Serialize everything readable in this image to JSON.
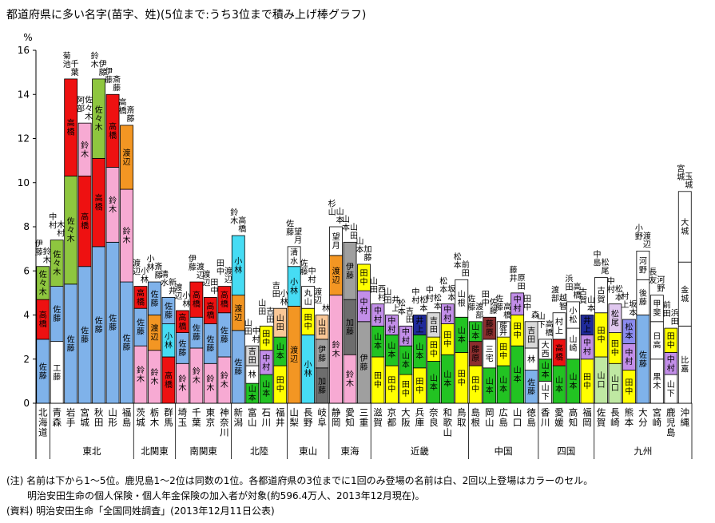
{
  "title": "都道府県に多い名字(苗字、姓)(5位まで:うち3位まで積み上げ棒グラフ)",
  "notes": [
    "(注) 名前は下から1～5位。鹿児島1～2位は同数の1位。各都道府県の3位までに1回のみ登場の名前は白、2回以上登場はカラーのセル。",
    "明治安田生命の個人保険・個人年金保険の加入者が対象(約596.4万人、2013年12月現在)。",
    "(資料) 明治安田生命「全国同姓調査」(2013年12月11日公表)"
  ],
  "chart_data": {
    "type": "bar",
    "stacked": true,
    "ylabel": "%",
    "ylim": [
      0,
      16
    ],
    "yticks": [
      "0",
      "2",
      "4",
      "6",
      "8",
      "10",
      "12",
      "14",
      "16"
    ],
    "colors": {
      "佐藤": "#7fb2ea",
      "鈴木": "#f7aad3",
      "高橋": "#ee1111",
      "佐々木": "#8ec63f",
      "渡辺": "#f39623",
      "伊藤": "#9f9f9f",
      "小林": "#46dcf4",
      "山田": "#f9c796",
      "田中": "#ffff00",
      "山本": "#22c322",
      "中村": "#c28ee8",
      "加藤": "#6d6d6d",
      "松本": "#8b8bee",
      "吉田": "#d9d9d9",
      "清水": "#ffffff",
      "山口": "#bfe8a2",
      "井上": "#1f2a9a",
      "松尾": "#e0c8ef",
      "藤原": "#8b2e2e",
      "高木": "#ffffff",
      "other": "#ffffff"
    },
    "text_colors": {
      "井上": "#ffffff",
      "藤原": "#ffffff",
      "加藤": "#ffffff",
      "高橋": "#ffffff"
    },
    "regions": [
      {
        "name": "東北",
        "from": 2,
        "to": 7
      },
      {
        "name": "北関東",
        "from": 8,
        "to": 10
      },
      {
        "name": "南関東",
        "from": 11,
        "to": 14
      },
      {
        "name": "北陸",
        "from": 15,
        "to": 18
      },
      {
        "name": "東山",
        "from": 19,
        "to": 21
      },
      {
        "name": "東海",
        "from": 22,
        "to": 24
      },
      {
        "name": "近畿",
        "from": 25,
        "to": 31
      },
      {
        "name": "中国",
        "from": 32,
        "to": 36
      },
      {
        "name": "四国",
        "from": 37,
        "to": 40
      },
      {
        "name": "九州",
        "from": 41,
        "to": 47
      }
    ],
    "prefectures": [
      {
        "name": "北海道",
        "stack": [
          {
            "n": "佐藤",
            "v": 2.9
          },
          {
            "n": "高橋",
            "v": 1.8
          },
          {
            "n": "佐々木",
            "v": 1.5
          }
        ],
        "top": [
          "鈴木",
          "伊藤"
        ]
      },
      {
        "name": "青森",
        "stack": [
          {
            "n": "工藤",
            "v": 2.8
          },
          {
            "n": "佐藤",
            "v": 2.5
          },
          {
            "n": "佐々木",
            "v": 2.1
          }
        ],
        "top": [
          "木村",
          "中村"
        ]
      },
      {
        "name": "岩手",
        "stack": [
          {
            "n": "佐藤",
            "v": 5.4
          },
          {
            "n": "佐々木",
            "v": 4.9
          },
          {
            "n": "高橋",
            "v": 4.4
          }
        ],
        "top": [
          "千葉",
          "菊池"
        ]
      },
      {
        "name": "宮城",
        "stack": [
          {
            "n": "佐藤",
            "v": 6.2
          },
          {
            "n": "高橋",
            "v": 4.1
          },
          {
            "n": "鈴木",
            "v": 2.4
          }
        ],
        "top": [
          "佐々木",
          "阿部"
        ]
      },
      {
        "name": "秋田",
        "stack": [
          {
            "n": "佐藤",
            "v": 7.1
          },
          {
            "n": "高橋",
            "v": 4.0
          },
          {
            "n": "佐々木",
            "v": 3.6
          }
        ],
        "top": [
          "伊藤",
          "鈴木"
        ]
      },
      {
        "name": "山形",
        "stack": [
          {
            "n": "佐藤",
            "v": 7.3
          },
          {
            "n": "鈴木",
            "v": 3.4
          },
          {
            "n": "高橋",
            "v": 3.3
          }
        ],
        "top": [
          "斎藤",
          "伊藤"
        ]
      },
      {
        "name": "福島",
        "stack": [
          {
            "n": "佐藤",
            "v": 5.5
          },
          {
            "n": "鈴木",
            "v": 4.2
          },
          {
            "n": "渡辺",
            "v": 2.9
          }
        ],
        "top": [
          "斎藤",
          "高橋"
        ]
      },
      {
        "name": "茨城",
        "stack": [
          {
            "n": "鈴木",
            "v": 2.6
          },
          {
            "n": "佐藤",
            "v": 1.7
          },
          {
            "n": "高橋",
            "v": 1.0
          }
        ],
        "top": [
          "小林",
          "渡辺"
        ]
      },
      {
        "name": "栃木",
        "stack": [
          {
            "n": "鈴木",
            "v": 2.4
          },
          {
            "n": "渡辺",
            "v": 1.6
          },
          {
            "n": "佐藤",
            "v": 1.5
          }
        ],
        "top": [
          "斎藤",
          "小林"
        ]
      },
      {
        "name": "群馬",
        "stack": [
          {
            "n": "高橋",
            "v": 2.1
          },
          {
            "n": "小林",
            "v": 1.5
          },
          {
            "n": "佐藤",
            "v": 1.2
          }
        ],
        "top": [
          "新井",
          "清水"
        ]
      },
      {
        "name": "埼玉",
        "stack": [
          {
            "n": "鈴木",
            "v": 1.8
          },
          {
            "n": "佐藤",
            "v": 1.4
          },
          {
            "n": "高橋",
            "v": 1.0
          }
        ],
        "top": [
          "小林",
          "渡辺"
        ]
      },
      {
        "name": "千葉",
        "stack": [
          {
            "n": "鈴木",
            "v": 2.5
          },
          {
            "n": "佐藤",
            "v": 1.4
          },
          {
            "n": "高橋",
            "v": 1.6
          }
        ],
        "top": [
          "渡辺",
          "伊藤"
        ]
      },
      {
        "name": "東京",
        "stack": [
          {
            "n": "鈴木",
            "v": 1.8
          },
          {
            "n": "佐藤",
            "v": 1.8
          },
          {
            "n": "高橋",
            "v": 1.2
          }
        ],
        "top": [
          "田中",
          "渡辺"
        ]
      },
      {
        "name": "神奈川",
        "stack": [
          {
            "n": "鈴木",
            "v": 2.1
          },
          {
            "n": "佐藤",
            "v": 2.0
          },
          {
            "n": "高橋",
            "v": 1.2
          }
        ],
        "top": [
          "渡辺",
          "田中"
        ]
      },
      {
        "name": "新潟",
        "stack": [
          {
            "n": "佐藤",
            "v": 3.3
          },
          {
            "n": "渡辺",
            "v": 1.6
          },
          {
            "n": "小林",
            "v": 2.7
          }
        ],
        "top": [
          "高橋",
          "鈴木"
        ]
      },
      {
        "name": "富山",
        "stack": [
          {
            "n": "山本",
            "v": 0.9
          },
          {
            "n": "林",
            "v": 0.8
          },
          {
            "n": "吉田",
            "v": 0.9
          }
        ],
        "top": [
          "中村",
          "山田"
        ]
      },
      {
        "name": "石川",
        "stack": [
          {
            "n": "山本",
            "v": 1.3
          },
          {
            "n": "中村",
            "v": 1.1
          },
          {
            "n": "田中",
            "v": 1.1
          }
        ],
        "top": [
          "吉田",
          "山田"
        ]
      },
      {
        "name": "福井",
        "stack": [
          {
            "n": "田中",
            "v": 1.7
          },
          {
            "n": "山本",
            "v": 1.3
          },
          {
            "n": "山田",
            "v": 1.3
          }
        ],
        "top": [
          "小林",
          "吉田"
        ]
      },
      {
        "name": "山梨",
        "stack": [
          {
            "n": "渡辺",
            "v": 4.4
          },
          {
            "n": "小林",
            "v": 1.8
          },
          {
            "n": "清水",
            "v": 0.9
          }
        ],
        "top": [
          "望月",
          "佐藤"
        ]
      },
      {
        "name": "長野",
        "stack": [
          {
            "n": "小林",
            "v": 3.1
          },
          {
            "n": "田中",
            "v": 1.2
          },
          {
            "n": "丸山",
            "v": 1.0
          }
        ],
        "top": [
          "中村",
          "佐藤"
        ]
      },
      {
        "name": "岐阜",
        "stack": [
          {
            "n": "加藤",
            "v": 1.6
          },
          {
            "n": "伊藤",
            "v": 1.3
          },
          {
            "n": "山田",
            "v": 1.1
          }
        ],
        "top": [
          "林",
          "渡辺"
        ]
      },
      {
        "name": "静岡",
        "stack": [
          {
            "n": "鈴木",
            "v": 4.9
          },
          {
            "n": "渡辺",
            "v": 1.8
          },
          {
            "n": "望月",
            "v": 1.3
          }
        ],
        "top": [
          "山本",
          "杉山"
        ]
      },
      {
        "name": "愛知",
        "stack": [
          {
            "n": "鈴木",
            "v": 2.2
          },
          {
            "n": "加藤",
            "v": 2.5
          },
          {
            "n": "伊藤",
            "v": 2.6
          }
        ],
        "top": [
          "山田",
          "山本"
        ]
      },
      {
        "name": "三重",
        "stack": [
          {
            "n": "伊藤",
            "v": 3.7
          },
          {
            "n": "中村",
            "v": 1.4
          },
          {
            "n": "田中",
            "v": 1.2
          }
        ],
        "top": [
          "加藤",
          "山本"
        ]
      },
      {
        "name": "滋賀",
        "stack": [
          {
            "n": "田中",
            "v": 2.1
          },
          {
            "n": "山本",
            "v": 1.4
          },
          {
            "n": "中村",
            "v": 1.0
          }
        ],
        "top": [
          "西村",
          "山田"
        ]
      },
      {
        "name": "京都",
        "stack": [
          {
            "n": "田中",
            "v": 1.7
          },
          {
            "n": "山本",
            "v": 1.4
          },
          {
            "n": "中村",
            "v": 0.9
          }
        ],
        "top": [
          "井上",
          "山田"
        ]
      },
      {
        "name": "大阪",
        "stack": [
          {
            "n": "田中",
            "v": 1.3
          },
          {
            "n": "山本",
            "v": 1.3
          },
          {
            "n": "中村",
            "v": 0.9
          }
        ],
        "top": [
          "吉田",
          "松本"
        ]
      },
      {
        "name": "兵庫",
        "stack": [
          {
            "n": "田中",
            "v": 1.6
          },
          {
            "n": "山本",
            "v": 1.5
          },
          {
            "n": "井上",
            "v": 0.9
          }
        ],
        "top": [
          "松本",
          "中村"
        ]
      },
      {
        "name": "奈良",
        "stack": [
          {
            "n": "山本",
            "v": 1.9
          },
          {
            "n": "田中",
            "v": 1.1
          },
          {
            "n": "吉田",
            "v": 1.1
          }
        ],
        "top": [
          "松本",
          "中村"
        ]
      },
      {
        "name": "和歌山",
        "stack": [
          {
            "n": "山本",
            "v": 2.2
          },
          {
            "n": "田中",
            "v": 1.4
          },
          {
            "n": "中村",
            "v": 0.9
          }
        ],
        "top": [
          "坂本",
          "松本"
        ]
      },
      {
        "name": "鳥取",
        "stack": [
          {
            "n": "田中",
            "v": 2.3
          },
          {
            "n": "山本",
            "v": 1.6
          },
          {
            "n": "山根",
            "v": 1.7
          }
        ],
        "top": [
          "前田",
          "松本"
        ]
      },
      {
        "name": "島根",
        "stack": [
          {
            "n": "田中",
            "v": 1.7
          },
          {
            "n": "藤原",
            "v": 1.1
          },
          {
            "n": "山本",
            "v": 0.9
          }
        ],
        "top": [
          "渡部",
          "佐藤"
        ]
      },
      {
        "name": "岡山",
        "stack": [
          {
            "n": "山本",
            "v": 1.6
          },
          {
            "n": "三宅",
            "v": 1.3
          },
          {
            "n": "藤原",
            "v": 1.0
          }
        ],
        "top": [
          "佐藤",
          "田中"
        ]
      },
      {
        "name": "広島",
        "stack": [
          {
            "n": "山本",
            "v": 1.7
          },
          {
            "n": "田中",
            "v": 1.3
          },
          {
            "n": "藤井",
            "v": 0.7
          }
        ],
        "top": [
          "高橋",
          "佐藤"
        ]
      },
      {
        "name": "山口",
        "stack": [
          {
            "n": "山本",
            "v": 2.6
          },
          {
            "n": "田中",
            "v": 1.4
          },
          {
            "n": "中村",
            "v": 1.0
          }
        ],
        "top": [
          "原田",
          "藤井"
        ]
      },
      {
        "name": "徳島",
        "stack": [
          {
            "n": "佐藤",
            "v": 1.5
          },
          {
            "n": "林",
            "v": 1.0
          },
          {
            "n": "吉田",
            "v": 1.2
          }
        ],
        "top": [
          "森",
          "田中"
        ]
      },
      {
        "name": "香川",
        "stack": [
          {
            "n": "山下",
            "v": 1.0
          },
          {
            "n": "山本",
            "v": 1.0
          },
          {
            "n": "大西",
            "v": 0.9
          }
        ],
        "top": [
          "高橋",
          "山下"
        ]
      },
      {
        "name": "愛媛",
        "stack": [
          {
            "n": "山本",
            "v": 1.7
          },
          {
            "n": "高橋",
            "v": 1.2
          },
          {
            "n": "村上",
            "v": 1.2
          }
        ],
        "top": [
          "越智",
          "渡部"
        ]
      },
      {
        "name": "高知",
        "stack": [
          {
            "n": "山本",
            "v": 2.0
          },
          {
            "n": "山崎",
            "v": 1.4
          },
          {
            "n": "小松",
            "v": 1.2
          }
        ],
        "top": [
          "高橋",
          "浜田"
        ]
      },
      {
        "name": "福岡",
        "stack": [
          {
            "n": "田中",
            "v": 2.0
          },
          {
            "n": "中村",
            "v": 1.1
          },
          {
            "n": "井上",
            "v": 0.9
          }
        ],
        "top": [
          "山本",
          "古賀"
        ]
      },
      {
        "name": "佐賀",
        "stack": [
          {
            "n": "山口",
            "v": 2.1
          },
          {
            "n": "田中",
            "v": 2.0
          },
          {
            "n": "古賀",
            "v": 1.6
          }
        ],
        "top": [
          "松尾",
          "中島"
        ]
      },
      {
        "name": "長崎",
        "stack": [
          {
            "n": "山口",
            "v": 1.8
          },
          {
            "n": "田中",
            "v": 1.4
          },
          {
            "n": "松尾",
            "v": 1.3
          }
        ],
        "top": [
          "松本",
          "中村"
        ]
      },
      {
        "name": "熊本",
        "stack": [
          {
            "n": "田中",
            "v": 1.5
          },
          {
            "n": "中村",
            "v": 1.2
          },
          {
            "n": "松本",
            "v": 1.1
          }
        ],
        "top": [
          "坂本",
          "村上"
        ]
      },
      {
        "name": "大分",
        "stack": [
          {
            "n": "佐藤",
            "v": 4.0
          },
          {
            "n": "後藤",
            "v": 1.6
          },
          {
            "n": "河野",
            "v": 1.3
          }
        ],
        "top": [
          "渡辺",
          "小野"
        ]
      },
      {
        "name": "宮崎",
        "stack": [
          {
            "n": "黒木",
            "v": 2.0
          },
          {
            "n": "日高",
            "v": 1.7
          },
          {
            "n": "甲斐",
            "v": 1.2
          }
        ],
        "top": [
          "河野",
          "長友"
        ]
      },
      {
        "name": "鹿児島",
        "stack": [
          {
            "n": "山下",
            "v": 1.3
          },
          {
            "n": "中村",
            "v": 1.0
          },
          {
            "n": "田中",
            "v": 1.1
          }
        ],
        "top": [
          "浜田",
          "前田"
        ]
      },
      {
        "name": "沖縄",
        "stack": [
          {
            "n": "比嘉",
            "v": 3.5
          },
          {
            "n": "金城",
            "v": 2.9
          },
          {
            "n": "大城",
            "v": 3.2
          }
        ],
        "top": [
          "玉城",
          "宮城"
        ]
      }
    ]
  }
}
